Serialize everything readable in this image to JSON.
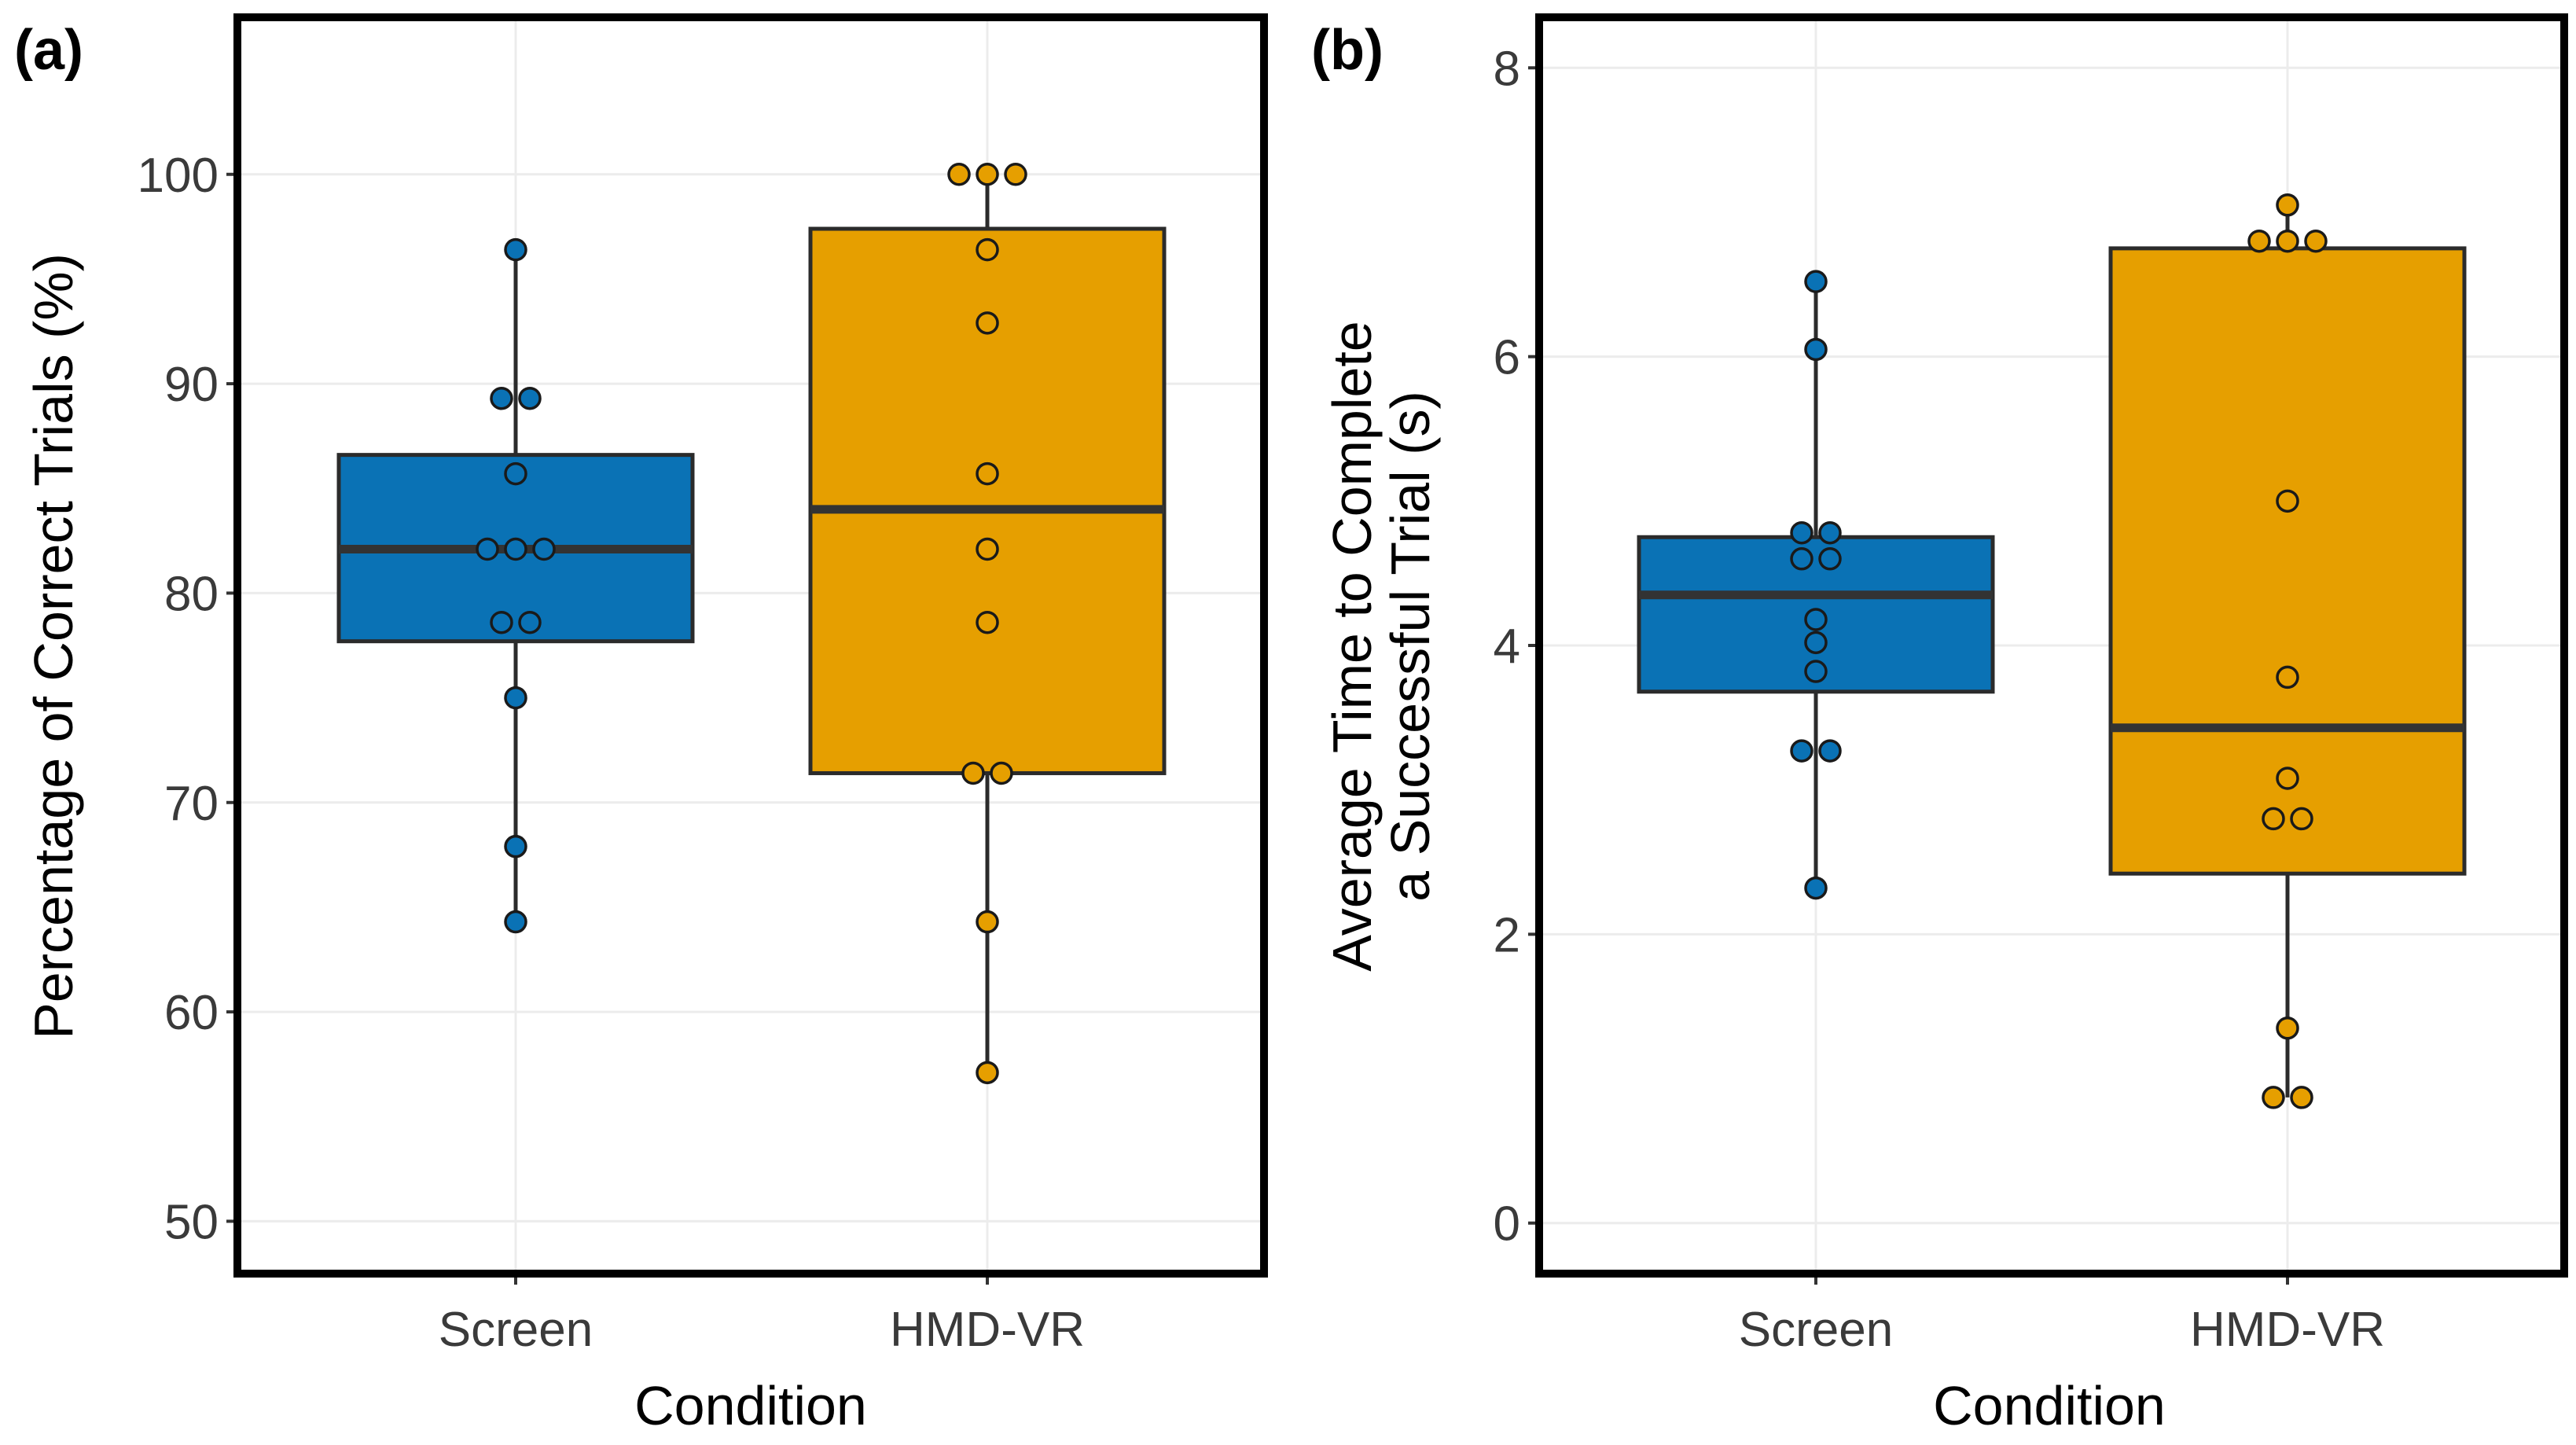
{
  "chart_data": [
    {
      "panel_label": "(a)",
      "type": "boxplot",
      "xlabel": "Condition",
      "ylabel": "Percentage of Correct Trials (%)",
      "ylim": [
        47.5,
        107.5
      ],
      "yticks": [
        50,
        60,
        70,
        80,
        90,
        100
      ],
      "ytick_labels": [
        "50",
        "60",
        "70",
        "80",
        "90",
        "100"
      ],
      "categories": [
        "Screen",
        "HMD-VR"
      ],
      "colors": [
        "#0a72b5",
        "#e69f00"
      ],
      "boxes": [
        {
          "category": "Screen",
          "q1": 77.7,
          "median": 82.1,
          "q3": 86.6,
          "whisker_low": 64.3,
          "whisker_high": 96.4
        },
        {
          "category": "HMD-VR",
          "q1": 71.4,
          "median": 84.0,
          "q3": 97.4,
          "whisker_low": 57.1,
          "whisker_high": 100.0
        }
      ],
      "points": [
        [
          96.4,
          89.3,
          89.3,
          85.7,
          82.1,
          82.1,
          82.1,
          78.6,
          78.6,
          75.0,
          67.9,
          64.3
        ],
        [
          100.0,
          100.0,
          100.0,
          96.4,
          92.9,
          85.7,
          82.1,
          78.6,
          71.4,
          71.4,
          64.3,
          57.1
        ]
      ],
      "grid": true
    },
    {
      "panel_label": "(b)",
      "type": "boxplot",
      "xlabel": "Condition",
      "ylabel": [
        "Average Time to Complete",
        "a Successful Trial (s)"
      ],
      "ylim": [
        -0.35,
        8.35
      ],
      "yticks": [
        0,
        2,
        4,
        6,
        8
      ],
      "ytick_labels": [
        "0",
        "2",
        "4",
        "6",
        "8"
      ],
      "categories": [
        "Screen",
        "HMD-VR"
      ],
      "colors": [
        "#0a72b5",
        "#e69f00"
      ],
      "boxes": [
        {
          "category": "Screen",
          "q1": 3.68,
          "median": 4.35,
          "q3": 4.75,
          "whisker_low": 2.32,
          "whisker_high": 6.52
        },
        {
          "category": "HMD-VR",
          "q1": 2.42,
          "median": 3.43,
          "q3": 6.75,
          "whisker_low": 0.87,
          "whisker_high": 7.05
        }
      ],
      "points": [
        [
          6.52,
          6.05,
          4.78,
          4.78,
          4.6,
          4.6,
          4.18,
          4.02,
          3.82,
          3.27,
          3.27,
          2.32
        ],
        [
          7.05,
          6.8,
          6.8,
          6.8,
          5.0,
          3.78,
          3.08,
          2.8,
          2.8,
          1.35,
          0.87,
          0.87
        ]
      ],
      "grid": true
    }
  ]
}
